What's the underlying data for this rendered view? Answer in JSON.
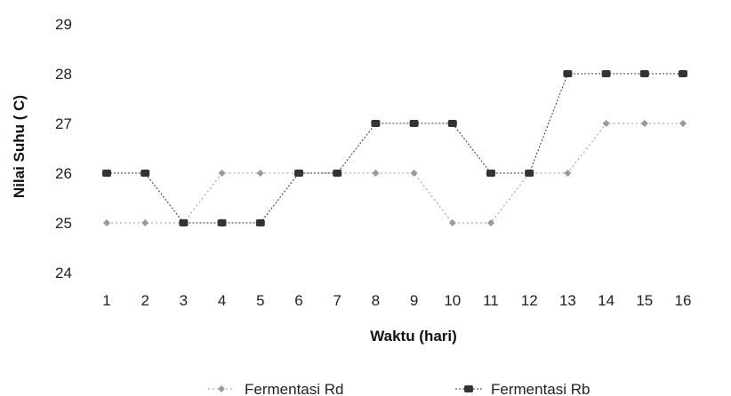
{
  "chart_data": {
    "type": "line",
    "title": "",
    "xlabel": "Waktu (hari)",
    "ylabel": "Nilai Suhu ( C)",
    "x": [
      "1",
      "2",
      "3",
      "4",
      "5",
      "6",
      "7",
      "8",
      "9",
      "10",
      "11",
      "12",
      "13",
      "14",
      "15",
      "16"
    ],
    "ylim": [
      24,
      29
    ],
    "yticks": [
      "24",
      "25",
      "26",
      "27",
      "28",
      "29"
    ],
    "grid": false,
    "legend": "bottom",
    "series": [
      {
        "name": "Fermentasi Rd",
        "values": [
          25,
          25,
          25,
          26,
          26,
          26,
          26,
          26,
          26,
          25,
          25,
          26,
          26,
          27,
          27,
          27
        ],
        "color": "#9a9a9a",
        "marker": "diamond"
      },
      {
        "name": "Fermentasi Rb",
        "values": [
          26,
          26,
          25,
          25,
          25,
          26,
          26,
          27,
          27,
          27,
          26,
          26,
          28,
          28,
          28,
          28
        ],
        "color": "#333333",
        "marker": "square"
      }
    ]
  }
}
